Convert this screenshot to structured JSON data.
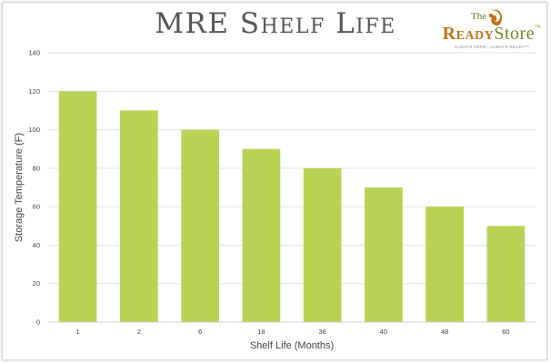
{
  "header": {
    "title": "MRE Shelf Life"
  },
  "logo": {
    "the": "The",
    "ready": "Ready",
    "store": "Store",
    "tm": "™",
    "tagline": "ALWAYS HERE | ALWAYS READY™",
    "icon": "squirrel-icon",
    "colors": {
      "ready": "#c07418",
      "store": "#7a8a23"
    }
  },
  "chart_data": {
    "type": "bar",
    "categories": [
      "1",
      "2",
      "6",
      "18",
      "36",
      "40",
      "48",
      "60"
    ],
    "values": [
      120,
      110,
      100,
      90,
      80,
      70,
      60,
      50
    ],
    "xlabel": "Shelf Life (Months)",
    "ylabel": "Storage Temperature (F)",
    "ylim": [
      0,
      140
    ],
    "yticks": [
      0,
      20,
      40,
      60,
      80,
      100,
      120,
      140
    ],
    "grid": true,
    "legend": "none",
    "bar_color": "#b8d253"
  }
}
